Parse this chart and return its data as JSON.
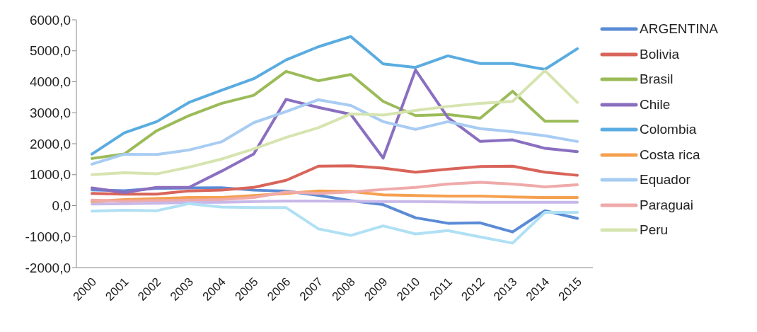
{
  "chart_data": {
    "type": "line",
    "categories": [
      "2000",
      "2001",
      "2002",
      "2003",
      "2004",
      "2005",
      "2006",
      "2007",
      "2008",
      "2009",
      "2010",
      "2011",
      "2012",
      "2013",
      "2014",
      "2015"
    ],
    "series": [
      {
        "name": "ARGENTINA",
        "color": "#5b8bd5",
        "values": [
          510,
          480,
          560,
          570,
          580,
          500,
          470,
          330,
          163,
          33,
          -392,
          -569,
          -556,
          -850,
          -163,
          -412
        ]
      },
      {
        "name": "Bolivia",
        "color": "#d9645a",
        "values": [
          392,
          373,
          373,
          477,
          503,
          588,
          817,
          1275,
          1288,
          1209,
          1078,
          1176,
          1261,
          1275,
          1078,
          980
        ]
      },
      {
        "name": "Brasil",
        "color": "#9bbb59",
        "values": [
          1523,
          1667,
          2418,
          2908,
          3301,
          3562,
          4333,
          4033,
          4235,
          3366,
          2908,
          2941,
          2824,
          3693,
          2725,
          2725
        ]
      },
      {
        "name": "Chile",
        "color": "#8a6fc0",
        "values": [
          569,
          425,
          588,
          588,
          1111,
          1667,
          3431,
          3170,
          2950,
          1536,
          4379,
          2843,
          2072,
          2124,
          1850,
          1745
        ]
      },
      {
        "name": "Colombia",
        "color": "#5aace0",
        "values": [
          1667,
          2353,
          2712,
          3333,
          3725,
          4098,
          4706,
          5131,
          5458,
          4575,
          4464,
          4837,
          4588,
          4588,
          4399,
          5065
        ]
      },
      {
        "name": "Costa rica",
        "color": "#f5a050",
        "values": [
          131,
          196,
          229,
          261,
          261,
          327,
          392,
          477,
          457,
          347,
          327,
          307,
          307,
          281,
          261,
          261
        ]
      },
      {
        "name": "Equador",
        "color": "#a8ccf2",
        "values": [
          1340,
          1660,
          1650,
          1797,
          2059,
          2680,
          3039,
          3418,
          3235,
          2712,
          2464,
          2712,
          2484,
          2386,
          2255,
          2072
        ]
      },
      {
        "name": "Paraguai",
        "color": "#efaaaa",
        "values": [
          176,
          150,
          163,
          176,
          196,
          261,
          438,
          392,
          438,
          523,
          588,
          699,
          752,
          699,
          608,
          673
        ]
      },
      {
        "name": "Peru",
        "color": "#d6e4b0",
        "values": [
          1000,
          1065,
          1026,
          1242,
          1503,
          1830,
          2203,
          2516,
          2961,
          2928,
          3072,
          3203,
          3301,
          3366,
          4359,
          3333
        ]
      },
      {
        "color": "#c8b8e8",
        "values": [
          50,
          60,
          80,
          100,
          110,
          130,
          150,
          150,
          140,
          130,
          130,
          120,
          110,
          110,
          110,
          110
        ]
      },
      {
        "color": "#b0e0f4",
        "values": [
          -176,
          -150,
          -163,
          65,
          -46,
          -65,
          -65,
          -752,
          -961,
          -654,
          -915,
          -804,
          -1013,
          -1209,
          -216,
          -216
        ]
      }
    ],
    "ylim": [
      -2000,
      6000
    ],
    "yticks": [
      {
        "value": -2000,
        "label": "-2000,0"
      },
      {
        "value": -1000,
        "label": "-1000,0"
      },
      {
        "value": 0,
        "label": "0,0"
      },
      {
        "value": 1000,
        "label": "1000,0"
      },
      {
        "value": 2000,
        "label": "2000,0"
      },
      {
        "value": 3000,
        "label": "3000,0"
      },
      {
        "value": 4000,
        "label": "4000,0"
      },
      {
        "value": 5000,
        "label": "5000,0"
      },
      {
        "value": 6000,
        "label": "6000,0"
      }
    ],
    "legend": "right",
    "grid": false,
    "marker": "none",
    "line_style": "solid"
  }
}
